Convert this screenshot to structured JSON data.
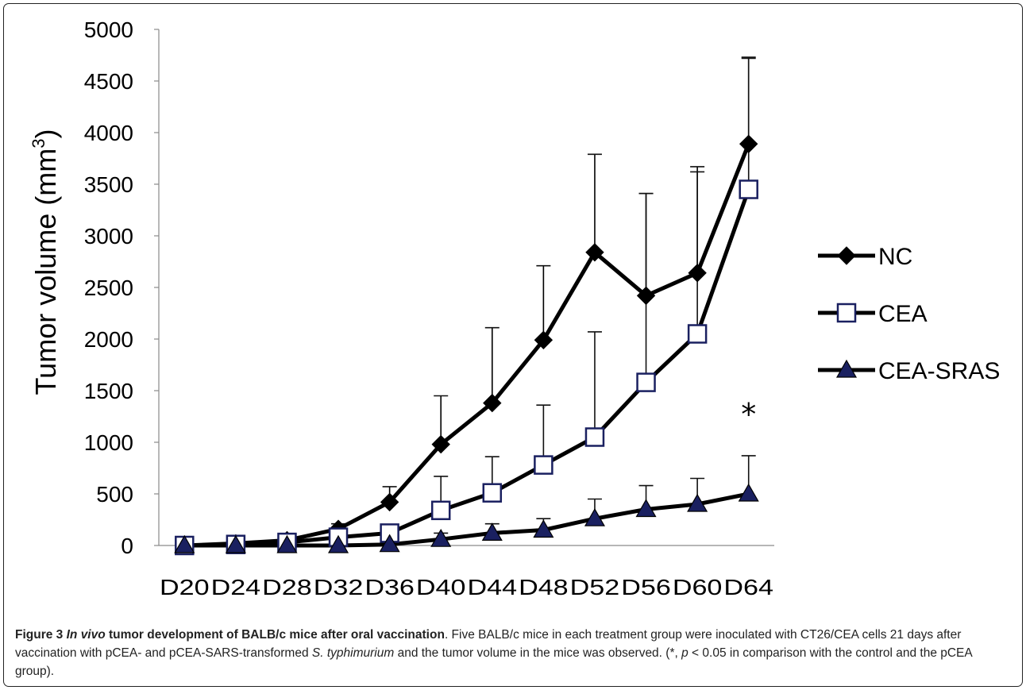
{
  "chart_data": {
    "type": "line",
    "title": "",
    "xlabel": "",
    "ylabel": "Tumor volume (mm3)",
    "ylabel_parts": {
      "main": "Tumor volume (mm",
      "sup": "3",
      "close": ")"
    },
    "ylim": [
      0,
      5000
    ],
    "yticks": [
      0,
      500,
      1000,
      1500,
      2000,
      2500,
      3000,
      3500,
      4000,
      4500,
      5000
    ],
    "categories": [
      "D20",
      "D24",
      "D28",
      "D32",
      "D36",
      "D40",
      "D44",
      "D48",
      "D52",
      "D56",
      "D60",
      "D64"
    ],
    "series": [
      {
        "name": "NC",
        "marker": "diamond-filled",
        "values": [
          0,
          20,
          50,
          160,
          420,
          980,
          1380,
          1990,
          2840,
          2420,
          2640,
          3890
        ],
        "error": [
          0,
          10,
          30,
          50,
          150,
          470,
          730,
          720,
          950,
          990,
          1030,
          830
        ]
      },
      {
        "name": "CEA",
        "marker": "square-open",
        "values": [
          0,
          10,
          30,
          80,
          120,
          340,
          510,
          780,
          1050,
          1580,
          2050,
          3450
        ],
        "error": [
          0,
          10,
          20,
          40,
          60,
          330,
          350,
          580,
          1020,
          1830,
          1570,
          1280
        ]
      },
      {
        "name": "CEA-SRAS",
        "marker": "triangle-filled",
        "values": [
          0,
          0,
          0,
          0,
          10,
          60,
          120,
          150,
          260,
          350,
          400,
          500
        ],
        "error": [
          0,
          0,
          0,
          0,
          0,
          60,
          90,
          110,
          190,
          230,
          250,
          370
        ]
      }
    ],
    "annotations": [
      {
        "text": "*",
        "category": "D64"
      }
    ],
    "legend_position": "right",
    "grid": false,
    "colors": {
      "NC": "#000000",
      "CEA": "#1a2060",
      "CEA-SRAS": "#1a2060",
      "axis": "#8a8a8a"
    }
  },
  "caption": {
    "figure_label": "Figure 3",
    "title_italic": "In vivo",
    "title_rest": " tumor development of BALB/c mice after oral vaccination",
    "text_1": ". Five BALB/c mice in each treatment group were inoculated with CT26/CEA cells 21 days after vaccination with pCEA- and pCEA-SARS-transformed ",
    "species": "S. typhimurium",
    "text_2": " and the tumor volume in the mice was observed. (*, ",
    "p_symbol": "p",
    "text_3": " < 0.05 in comparison with the control and the pCEA group)."
  }
}
